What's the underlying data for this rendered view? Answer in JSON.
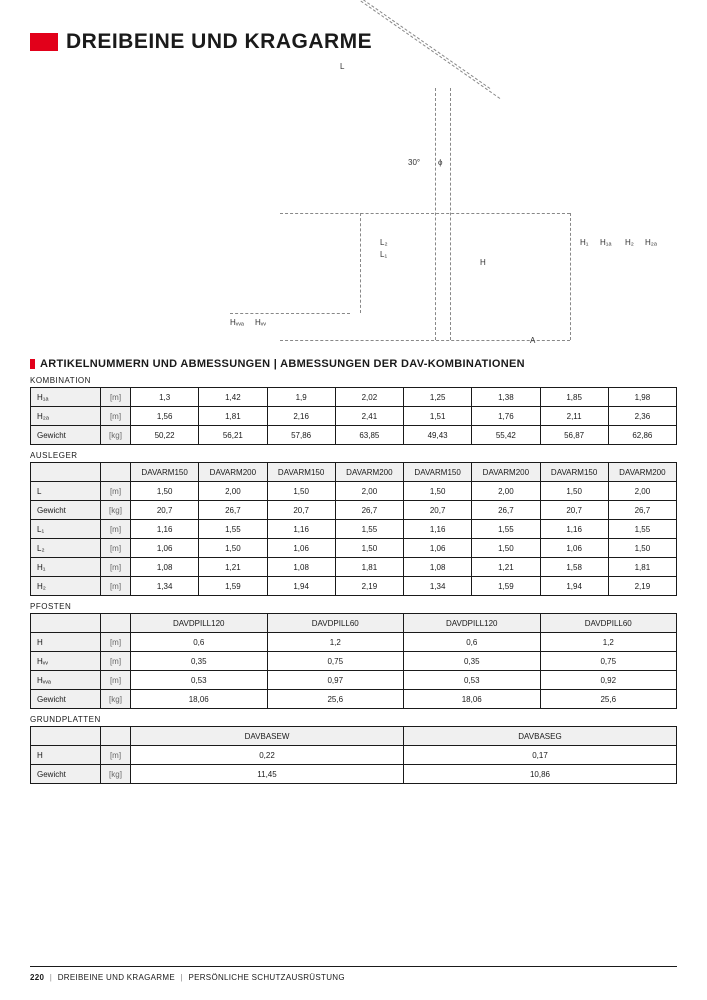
{
  "header": {
    "title": "DREIBEINE UND KRAGARME"
  },
  "diagram": {
    "labels": {
      "L": "L",
      "thirty": "30°",
      "phi": "ϕ",
      "L1": "L₁",
      "L2": "L₂",
      "H": "H",
      "H1": "H₁",
      "H1A": "H₁ₐ",
      "H2": "H₂",
      "H2A": "H₂ₐ",
      "HW": "Hᵥᵥ",
      "HWA": "Hᵥᵥₐ",
      "A": "A"
    }
  },
  "section": {
    "title": "ARTIKELNUMMERN UND ABMESSUNGEN | ABMESSUNGEN DER DAV-KOMBINATIONEN"
  },
  "tables": {
    "kombination": {
      "title": "KOMBINATION",
      "rows": [
        {
          "label": "H₁ₐ",
          "unit": "[m]",
          "cells": [
            "1,3",
            "1,42",
            "1,9",
            "2,02",
            "1,25",
            "1,38",
            "1,85",
            "1,98"
          ]
        },
        {
          "label": "H₂ₐ",
          "unit": "[m]",
          "cells": [
            "1,56",
            "1,81",
            "2,16",
            "2,41",
            "1,51",
            "1,76",
            "2,11",
            "2,36"
          ]
        },
        {
          "label": "Gewicht",
          "unit": "[kg]",
          "cells": [
            "50,22",
            "56,21",
            "57,86",
            "63,85",
            "49,43",
            "55,42",
            "56,87",
            "62,86"
          ]
        }
      ]
    },
    "ausleger": {
      "title": "AUSLEGER",
      "headers": [
        "DAVARM150",
        "DAVARM200",
        "DAVARM150",
        "DAVARM200",
        "DAVARM150",
        "DAVARM200",
        "DAVARM150",
        "DAVARM200"
      ],
      "rows": [
        {
          "label": "L",
          "unit": "[m]",
          "cells": [
            "1,50",
            "2,00",
            "1,50",
            "2,00",
            "1,50",
            "2,00",
            "1,50",
            "2,00"
          ]
        },
        {
          "label": "Gewicht",
          "unit": "[kg]",
          "cells": [
            "20,7",
            "26,7",
            "20,7",
            "26,7",
            "20,7",
            "26,7",
            "20,7",
            "26,7"
          ]
        },
        {
          "label": "L₁",
          "unit": "[m]",
          "cells": [
            "1,16",
            "1,55",
            "1,16",
            "1,55",
            "1,16",
            "1,55",
            "1,16",
            "1,55"
          ]
        },
        {
          "label": "L₂",
          "unit": "[m]",
          "cells": [
            "1,06",
            "1,50",
            "1,06",
            "1,50",
            "1,06",
            "1,50",
            "1,06",
            "1,50"
          ]
        },
        {
          "label": "H₁",
          "unit": "[m]",
          "cells": [
            "1,08",
            "1,21",
            "1,08",
            "1,81",
            "1,08",
            "1,21",
            "1,58",
            "1,81"
          ]
        },
        {
          "label": "H₂",
          "unit": "[m]",
          "cells": [
            "1,34",
            "1,59",
            "1,94",
            "2,19",
            "1,34",
            "1,59",
            "1,94",
            "2,19"
          ]
        }
      ]
    },
    "pfosten": {
      "title": "PFOSTEN",
      "headers": [
        "DAVDPILL120",
        "DAVDPILL60",
        "DAVDPILL120",
        "DAVDPILL60"
      ],
      "rows": [
        {
          "label": "H",
          "unit": "[m]",
          "cells": [
            "0,6",
            "1,2",
            "0,6",
            "1,2"
          ]
        },
        {
          "label": "Hᵥᵥ",
          "unit": "[m]",
          "cells": [
            "0,35",
            "0,75",
            "0,35",
            "0,75"
          ]
        },
        {
          "label": "Hᵥᵥₐ",
          "unit": "[m]",
          "cells": [
            "0,53",
            "0,97",
            "0,53",
            "0,92"
          ]
        },
        {
          "label": "Gewicht",
          "unit": "[kg]",
          "cells": [
            "18,06",
            "25,6",
            "18,06",
            "25,6"
          ]
        }
      ]
    },
    "grundplatten": {
      "title": "GRUNDPLATTEN",
      "headers": [
        "DAVBASEW",
        "DAVBASEG"
      ],
      "rows": [
        {
          "label": "H",
          "unit": "[m]",
          "cells": [
            "0,22",
            "0,17"
          ]
        },
        {
          "label": "Gewicht",
          "unit": "[kg]",
          "cells": [
            "11,45",
            "10,86"
          ]
        }
      ]
    }
  },
  "footer": {
    "page": "220",
    "crumb1": "DREIBEINE UND KRAGARME",
    "crumb2": "PERSÖNLICHE SCHUTZAUSRÜSTUNG"
  },
  "colors": {
    "accent": "#e2001a",
    "text": "#1a1a1a",
    "grid": "#1a1a1a",
    "headerbg": "#f0f0f0"
  }
}
